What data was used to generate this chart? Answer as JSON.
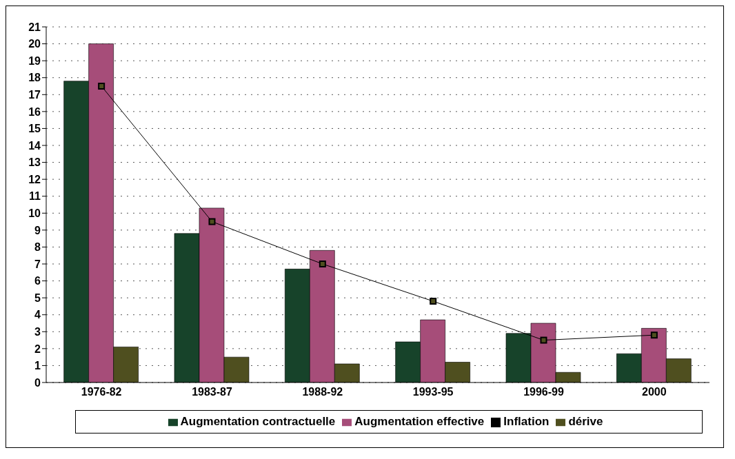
{
  "chart_data": {
    "type": "bar",
    "categories": [
      "1976-82",
      "1983-87",
      "1988-92",
      "1993-95",
      "1996-99",
      "2000"
    ],
    "series": [
      {
        "name": "Augmentation contractuelle",
        "color": "#17432a",
        "values": [
          17.8,
          8.8,
          6.7,
          2.4,
          2.9,
          1.7
        ]
      },
      {
        "name": "Augmentation effective",
        "color": "#a64d79",
        "values": [
          20,
          10.3,
          7.8,
          3.7,
          3.5,
          3.2
        ]
      },
      {
        "name": "dérive",
        "color": "#4f4f1f",
        "values": [
          2.1,
          1.5,
          1.1,
          1.2,
          0.6,
          1.4
        ]
      },
      {
        "name": "Inflation",
        "type": "line",
        "color": "#000000",
        "values": [
          17.5,
          9.5,
          7.0,
          4.8,
          2.5,
          2.8
        ],
        "marker": "square"
      }
    ],
    "ylim": [
      0,
      21
    ],
    "yticks": [
      0,
      1,
      2,
      3,
      4,
      5,
      6,
      7,
      8,
      9,
      10,
      11,
      12,
      13,
      14,
      15,
      16,
      17,
      18,
      19,
      20,
      21
    ],
    "grid": "y",
    "legend": "bottom"
  }
}
